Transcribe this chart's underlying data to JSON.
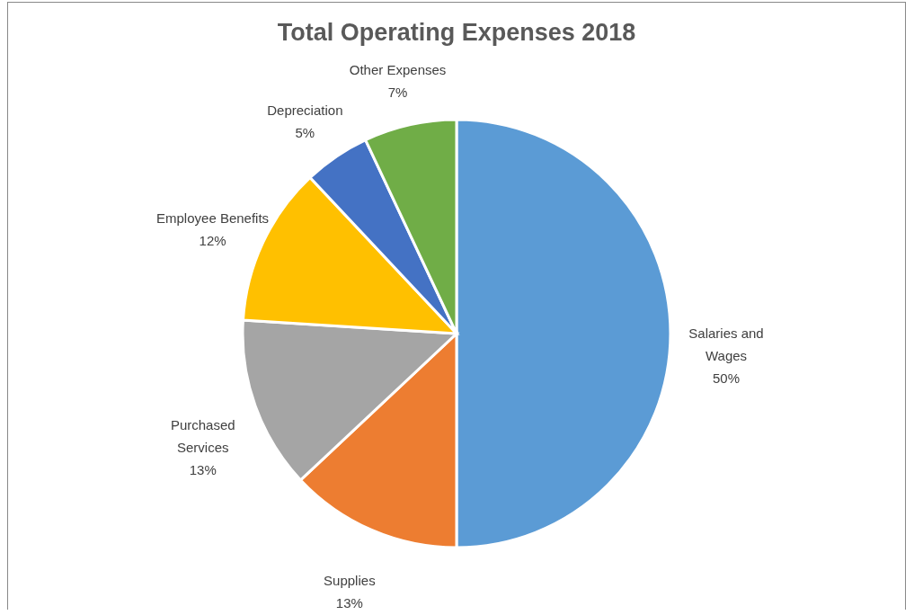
{
  "chart_data": {
    "type": "pie",
    "title": "Total Operating Expenses 2018",
    "categories": [
      "Salaries and Wages",
      "Supplies",
      "Purchased Services",
      "Employee Benefits",
      "Depreciation",
      "Other Expenses"
    ],
    "values": [
      50,
      13,
      13,
      12,
      5,
      7
    ],
    "value_labels": [
      "50%",
      "13%",
      "13%",
      "12%",
      "5%",
      "7%"
    ],
    "colors": [
      "#5b9bd5",
      "#ed7d31",
      "#a5a5a5",
      "#ffc000",
      "#4472c4",
      "#70ad47"
    ],
    "legend": false
  }
}
